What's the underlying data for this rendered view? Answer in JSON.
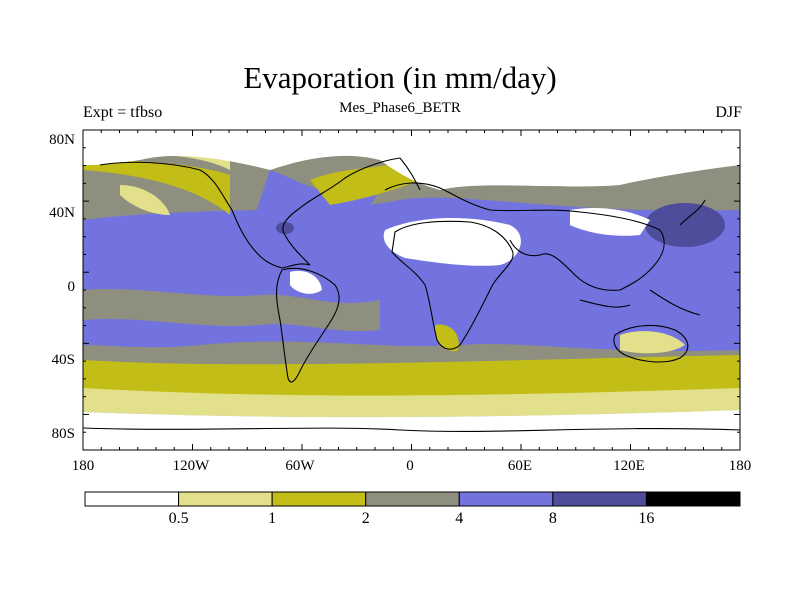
{
  "title": "Evaporation (in mm/day)",
  "subtitle": "Mes_Phase6_BETR",
  "left_label": "Expt = tfbso",
  "right_label": "DJF",
  "lat_ticks": [
    "80N",
    "40N",
    "0",
    "40S",
    "80S"
  ],
  "lon_ticks": [
    "180",
    "120W",
    "60W",
    "0",
    "60E",
    "120E",
    "180"
  ],
  "colorbar": {
    "colors": [
      "#ffffff",
      "#e2e08a",
      "#c3bd18",
      "#8f8f7f",
      "#7373e0",
      "#4d4d9c",
      "#000000"
    ],
    "labels": [
      "0.5",
      "1",
      "2",
      "4",
      "8",
      "16"
    ]
  },
  "colors": {
    "land": "#ffffff",
    "coast": "#000000"
  }
}
